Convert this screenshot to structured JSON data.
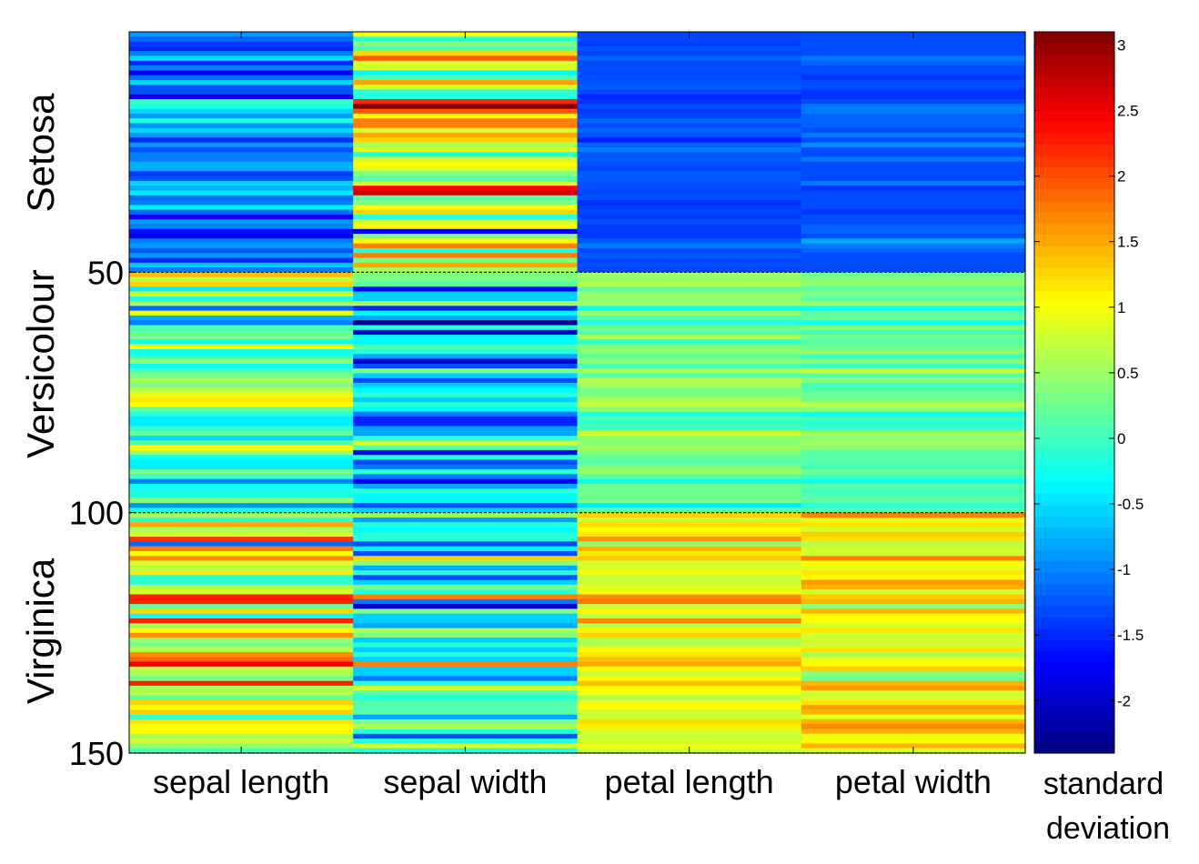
{
  "chart_data": {
    "type": "heatmap",
    "title": "",
    "columns": [
      "sepal length",
      "sepal width",
      "petal length",
      "petal width"
    ],
    "y_ticks": [
      "50",
      "100",
      "150"
    ],
    "group_labels": [
      "Setosa",
      "Versicolour",
      "Virginica"
    ],
    "group_boundaries": [
      50,
      100,
      150
    ],
    "n_rows": 150,
    "colormap": "jet",
    "colorbar": {
      "label_line1": "standard",
      "label_line2": "deviation",
      "range": [
        -2.4,
        3.1
      ],
      "ticks": [
        "-2",
        "-1.5",
        "-1",
        "-0.5",
        "0",
        "0.5",
        "1",
        "1.5",
        "2",
        "2.5",
        "3"
      ]
    },
    "values": {
      "sepal length": [
        -0.9,
        -1.14,
        -1.39,
        -1.51,
        -1.02,
        -0.54,
        -1.51,
        -1.02,
        -1.75,
        -1.14,
        -0.54,
        -1.26,
        -1.26,
        -1.87,
        -0.05,
        -0.17,
        -0.54,
        -0.9,
        -0.17,
        -0.9,
        -0.54,
        -0.9,
        -1.51,
        -0.9,
        -1.26,
        -1.02,
        -1.02,
        -0.78,
        -0.78,
        -1.39,
        -1.26,
        -0.54,
        -0.78,
        -0.42,
        -1.14,
        -1.02,
        -0.42,
        -1.14,
        -1.75,
        -0.9,
        -1.02,
        -1.63,
        -1.75,
        -1.02,
        -0.9,
        -1.26,
        -0.9,
        -1.51,
        -0.66,
        -1.02,
        1.4,
        0.67,
        1.28,
        -0.42,
        0.8,
        -0.17,
        0.55,
        -1.14,
        0.92,
        -0.78,
        -1.02,
        0.07,
        0.19,
        0.31,
        -0.3,
        1.04,
        -0.3,
        -0.05,
        0.43,
        -0.3,
        0.07,
        0.31,
        0.55,
        0.31,
        0.67,
        0.92,
        1.16,
        1.04,
        0.19,
        -0.17,
        -0.42,
        -0.42,
        -0.05,
        0.19,
        -0.54,
        0.19,
        1.04,
        0.55,
        -0.3,
        -0.42,
        -0.42,
        0.31,
        -0.05,
        -1.02,
        -0.3,
        -0.17,
        -0.17,
        0.43,
        -0.9,
        -0.17,
        0.55,
        -0.05,
        1.52,
        0.55,
        0.8,
        2.12,
        -1.14,
        1.76,
        1.04,
        1.64,
        0.8,
        0.67,
        1.16,
        -0.17,
        -0.05,
        0.67,
        0.8,
        2.24,
        2.24,
        0.19,
        1.28,
        -0.3,
        2.24,
        0.55,
        1.04,
        1.64,
        0.43,
        0.31,
        0.67,
        1.64,
        1.88,
        2.49,
        0.67,
        0.55,
        0.31,
        2.24,
        0.55,
        0.67,
        0.19,
        1.28,
        1.04,
        1.28,
        -0.05,
        1.16,
        1.04,
        1.04,
        0.55,
        0.8,
        0.43,
        0.07
      ],
      "sepal width": [
        1.03,
        -0.13,
        0.34,
        0.11,
        1.26,
        1.96,
        0.8,
        0.8,
        -0.36,
        0.11,
        1.5,
        0.8,
        -0.13,
        -0.13,
        2.19,
        3.11,
        1.96,
        1.03,
        1.73,
        1.73,
        0.8,
        1.5,
        1.26,
        0.57,
        0.8,
        -0.13,
        0.8,
        1.03,
        0.8,
        0.34,
        0.11,
        0.8,
        2.42,
        2.65,
        0.11,
        0.34,
        1.03,
        1.26,
        -0.13,
        0.8,
        1.03,
        -1.75,
        0.34,
        1.03,
        1.73,
        -0.13,
        1.73,
        0.34,
        1.5,
        0.57,
        0.34,
        0.34,
        0.11,
        -1.75,
        -0.59,
        -0.59,
        0.57,
        -1.52,
        -0.36,
        -0.82,
        -2.44,
        -0.13,
        -1.98,
        -0.36,
        -0.36,
        0.11,
        -0.13,
        -0.82,
        -1.98,
        -1.29,
        0.34,
        -0.59,
        -1.29,
        -0.59,
        -0.36,
        -0.13,
        -0.59,
        -0.13,
        -0.36,
        -1.06,
        -1.52,
        -1.52,
        -0.82,
        -0.82,
        -0.13,
        0.8,
        0.11,
        -1.75,
        -0.13,
        -1.29,
        -1.06,
        -0.13,
        -1.06,
        -1.75,
        -0.82,
        -0.13,
        -0.36,
        -0.36,
        -1.29,
        -0.59,
        0.57,
        -0.82,
        -0.13,
        -0.36,
        -0.13,
        -0.13,
        -1.29,
        -0.36,
        -1.29,
        1.26,
        0.34,
        -0.82,
        -0.13,
        -1.29,
        -0.59,
        0.34,
        -0.13,
        1.73,
        -1.06,
        -1.98,
        0.34,
        -0.59,
        -0.59,
        -0.82,
        0.57,
        0.34,
        -0.59,
        -0.13,
        -0.59,
        -0.13,
        -0.59,
        1.73,
        -0.59,
        -0.59,
        -1.06,
        -0.13,
        0.8,
        0.11,
        -0.13,
        0.11,
        0.11,
        0.11,
        -0.82,
        0.34,
        0.57,
        -0.13,
        -1.29,
        -0.13,
        0.8,
        -0.13
      ],
      "petal length": [
        -1.34,
        -1.34,
        -1.39,
        -1.28,
        -1.34,
        -1.17,
        -1.34,
        -1.28,
        -1.34,
        -1.28,
        -1.28,
        -1.23,
        -1.34,
        -1.51,
        -1.45,
        -1.28,
        -1.39,
        -1.34,
        -1.17,
        -1.28,
        -1.17,
        -1.28,
        -1.56,
        -1.17,
        -1.05,
        -1.23,
        -1.23,
        -1.28,
        -1.34,
        -1.23,
        -1.23,
        -1.28,
        -1.28,
        -1.34,
        -1.28,
        -1.45,
        -1.39,
        -1.34,
        -1.39,
        -1.28,
        -1.39,
        -1.39,
        -1.39,
        -1.23,
        -1.05,
        -1.34,
        -1.23,
        -1.34,
        -1.28,
        -1.34,
        0.54,
        0.42,
        0.65,
        0.14,
        0.48,
        0.42,
        0.54,
        -0.26,
        0.48,
        0.08,
        -0.15,
        0.25,
        0.14,
        0.54,
        -0.09,
        0.37,
        0.42,
        0.19,
        0.42,
        0.08,
        0.59,
        0.14,
        0.65,
        0.54,
        0.31,
        0.37,
        0.59,
        0.71,
        0.42,
        -0.15,
        0.02,
        -0.04,
        0.08,
        0.76,
        0.42,
        0.42,
        0.54,
        0.37,
        0.19,
        0.14,
        0.37,
        0.48,
        0.14,
        -0.26,
        0.25,
        0.25,
        0.25,
        0.31,
        -0.43,
        0.19,
        1.27,
        0.76,
        1.22,
        1.05,
        1.16,
        1.62,
        0.42,
        1.45,
        1.16,
        1.33,
        0.76,
        0.88,
        0.99,
        0.71,
        0.76,
        0.88,
        0.99,
        1.67,
        1.79,
        0.71,
        1.1,
        0.65,
        1.67,
        0.65,
        1.1,
        1.27,
        0.59,
        0.65,
        1.05,
        1.16,
        1.39,
        1.5,
        1.05,
        0.76,
        1.05,
        1.39,
        1.05,
        0.99,
        0.59,
        0.93,
        1.05,
        0.76,
        0.76,
        1.22,
        1.1,
        0.82,
        0.71,
        0.82,
        0.93,
        0.76
      ],
      "petal width": [
        -1.31,
        -1.31,
        -1.31,
        -1.31,
        -1.31,
        -1.05,
        -1.18,
        -1.31,
        -1.31,
        -1.44,
        -1.31,
        -1.31,
        -1.44,
        -1.44,
        -1.31,
        -1.05,
        -1.05,
        -1.18,
        -1.18,
        -1.18,
        -1.31,
        -1.05,
        -1.31,
        -0.92,
        -1.31,
        -1.31,
        -1.05,
        -1.31,
        -1.31,
        -1.31,
        -1.31,
        -1.05,
        -1.44,
        -1.31,
        -1.31,
        -1.31,
        -1.31,
        -1.44,
        -1.31,
        -1.31,
        -1.18,
        -1.18,
        -1.31,
        -0.79,
        -1.05,
        -1.18,
        -1.31,
        -1.31,
        -1.31,
        -1.31,
        0.26,
        0.4,
        0.4,
        0.13,
        0.4,
        0.13,
        0.53,
        -0.26,
        0.13,
        0.26,
        -0.26,
        0.4,
        0.0,
        0.26,
        0.13,
        0.26,
        0.4,
        0.0,
        0.4,
        0.0,
        0.79,
        0.13,
        0.4,
        0.0,
        0.13,
        0.26,
        0.26,
        0.66,
        0.4,
        -0.26,
        0.0,
        -0.13,
        0.0,
        0.53,
        0.4,
        0.53,
        0.4,
        0.13,
        0.13,
        0.13,
        0.0,
        0.26,
        0.0,
        -0.26,
        0.13,
        0.0,
        0.13,
        0.13,
        -0.13,
        0.13,
        1.71,
        0.92,
        1.18,
        0.79,
        1.31,
        1.18,
        0.66,
        0.79,
        0.79,
        1.71,
        1.05,
        0.92,
        1.18,
        1.05,
        1.58,
        1.45,
        0.79,
        1.31,
        1.45,
        0.4,
        1.45,
        1.05,
        1.05,
        0.79,
        1.18,
        0.79,
        0.79,
        0.79,
        1.18,
        0.53,
        0.92,
        1.05,
        1.31,
        0.4,
        0.26,
        1.45,
        1.58,
        0.79,
        0.79,
        1.18,
        1.58,
        1.45,
        0.92,
        1.45,
        1.71,
        1.45,
        0.92,
        1.05,
        1.45,
        0.79
      ]
    }
  }
}
